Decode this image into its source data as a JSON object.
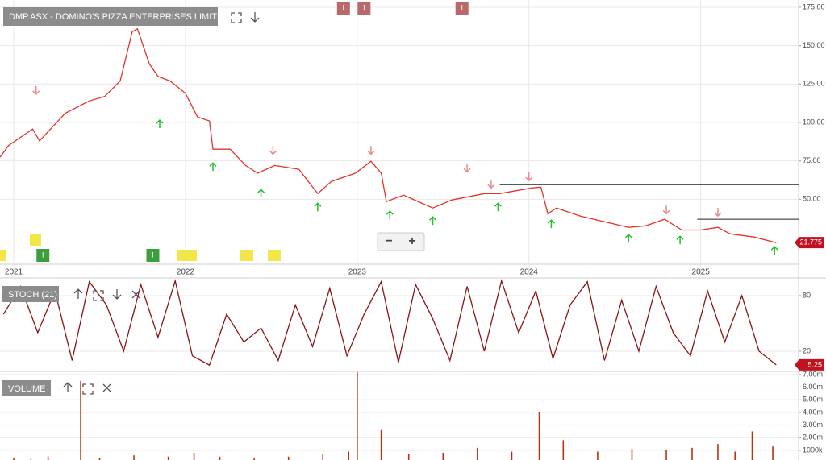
{
  "chart_data": [
    {
      "type": "line",
      "title": "DMP.ASX - DOMINO'S PIZZA ENTERPRISES LIMITED",
      "color": "#e3342a",
      "x": [
        2020.92,
        2020.97,
        2021.11,
        2021.15,
        2021.3,
        2021.44,
        2021.53,
        2021.62,
        2021.69,
        2021.72,
        2021.79,
        2021.84,
        2021.91,
        2022.0,
        2022.07,
        2022.14,
        2022.16,
        2022.26,
        2022.35,
        2022.42,
        2022.52,
        2022.66,
        2022.77,
        2022.85,
        2022.99,
        2023.08,
        2023.14,
        2023.17,
        2023.27,
        2023.44,
        2023.55,
        2023.74,
        2023.83,
        2024.02,
        2024.07,
        2024.11,
        2024.16,
        2024.3,
        2024.58,
        2024.68,
        2024.79,
        2024.89,
        2025.0,
        2025.1,
        2025.17,
        2025.31,
        2025.44
      ],
      "values": [
        77.4,
        85,
        95.7,
        88,
        106,
        114,
        117,
        127,
        159,
        161,
        138,
        130,
        127,
        119,
        103.6,
        101,
        82.6,
        82.6,
        72,
        67,
        72,
        69.5,
        53.7,
        61.6,
        67,
        74.7,
        67,
        48.5,
        52.7,
        44.3,
        49.5,
        53.7,
        53.7,
        57.4,
        57.9,
        40.6,
        44.3,
        39,
        31.7,
        32.7,
        37,
        30,
        30,
        31.7,
        27.5,
        25.4,
        21.775
      ],
      "xlim": [
        2020.92,
        2025.57
      ],
      "xticks": [
        2021,
        2022,
        2023,
        2024,
        2025
      ],
      "ylim": [
        7.7,
        179.7
      ],
      "yticks": [
        {
          "value": 175,
          "label": "175.00"
        },
        {
          "value": 150,
          "label": "150.00"
        },
        {
          "value": 125,
          "label": "125.00"
        },
        {
          "value": 100,
          "label": "100.00"
        },
        {
          "value": 75,
          "label": "75.00"
        },
        {
          "value": 50,
          "label": "50.00"
        }
      ],
      "grid": true,
      "markers": {
        "down": {
          "x": [
            2021.13,
            2022.51,
            2023.08,
            2023.64,
            2023.78,
            2024.0,
            2024.8,
            2025.1
          ],
          "y": [
            121,
            82,
            82,
            70.5,
            60,
            64.8,
            43.2,
            41.7
          ]
        },
        "up": {
          "x": [
            2021.85,
            2022.16,
            2022.44,
            2022.77,
            2023.19,
            2023.44,
            2023.82,
            2024.13,
            2024.58,
            2024.88,
            2025.43
          ],
          "y": [
            98.9,
            71,
            53.7,
            44.8,
            39.6,
            35.9,
            44.8,
            33.8,
            24.4,
            23.3,
            16.5
          ]
        }
      },
      "hlines": [
        {
          "x": [
            2023.83,
            2025.57
          ],
          "y": 59.5
        },
        {
          "x": [
            2024.98,
            2025.57
          ],
          "y": 37
        }
      ],
      "top_badges": [
        {
          "x": 2022.92,
          "label": "I"
        },
        {
          "x": 2023.04,
          "label": "I"
        },
        {
          "x": 2023.61,
          "label": "I"
        }
      ],
      "bottom_badges": [
        {
          "x": 2021.17,
          "label": "I"
        },
        {
          "x": 2021.81,
          "label": "I"
        }
      ],
      "zoom_buttons": [
        "−",
        "+"
      ]
    },
    {
      "type": "line",
      "title": "STOCH (21)",
      "color": "#8b1414",
      "x": [
        2020.94,
        2021.04,
        2021.14,
        2021.24,
        2021.34,
        2021.44,
        2021.54,
        2021.64,
        2021.74,
        2021.84,
        2021.94,
        2022.04,
        2022.14,
        2022.24,
        2022.34,
        2022.44,
        2022.54,
        2022.64,
        2022.74,
        2022.84,
        2022.94,
        2023.04,
        2023.14,
        2023.24,
        2023.34,
        2023.44,
        2023.54,
        2023.64,
        2023.74,
        2023.84,
        2023.94,
        2024.04,
        2024.14,
        2024.24,
        2024.34,
        2024.44,
        2024.54,
        2024.64,
        2024.74,
        2024.84,
        2024.94,
        2025.04,
        2025.14,
        2025.24,
        2025.34,
        2025.44
      ],
      "values": [
        60,
        90,
        40,
        85,
        10,
        95,
        70,
        20,
        92,
        35,
        96,
        15,
        5,
        60,
        30,
        45,
        10,
        70,
        25,
        88,
        15,
        60,
        95,
        8,
        92,
        55,
        10,
        90,
        20,
        96,
        40,
        85,
        12,
        70,
        95,
        10,
        75,
        20,
        90,
        40,
        15,
        85,
        30,
        80,
        20,
        5.25
      ],
      "xlim": [
        2020.92,
        2025.57
      ],
      "ylim": [
        -0.9,
        99.1
      ],
      "yticks": [
        80,
        20
      ],
      "grid": true
    },
    {
      "type": "bar",
      "title": "VOLUME",
      "color": "#c0300f",
      "x": [
        2021.0,
        2021.1,
        2021.2,
        2021.39,
        2021.5,
        2021.7,
        2021.9,
        2022.05,
        2022.2,
        2022.4,
        2022.6,
        2022.8,
        2022.95,
        2023.0,
        2023.14,
        2023.3,
        2023.5,
        2023.7,
        2023.9,
        2024.06,
        2024.2,
        2024.4,
        2024.6,
        2024.8,
        2024.95,
        2025.1,
        2025.2,
        2025.3,
        2025.42
      ],
      "values": [
        400000,
        300000,
        500000,
        6500000,
        400000,
        600000,
        500000,
        800000,
        500000,
        400000,
        500000,
        700000,
        900000,
        7200000,
        2600000,
        700000,
        800000,
        1200000,
        900000,
        4000000,
        1800000,
        900000,
        1100000,
        1000000,
        1200000,
        1500000,
        900000,
        2500000,
        1300000
      ],
      "xlim": [
        2020.92,
        2025.57
      ],
      "ylim": [
        230000,
        7190000
      ],
      "yticks": [
        {
          "value": 1000000,
          "label": "1000k"
        },
        {
          "value": 2000000,
          "label": "2.00m"
        },
        {
          "value": 3000000,
          "label": "3.00m"
        },
        {
          "value": 4000000,
          "label": "4.00m"
        },
        {
          "value": 5000000,
          "label": "5.00m"
        },
        {
          "value": 6000000,
          "label": "6.00m"
        },
        {
          "value": 7000000,
          "label": "7.00m"
        }
      ],
      "grid": true
    }
  ]
}
